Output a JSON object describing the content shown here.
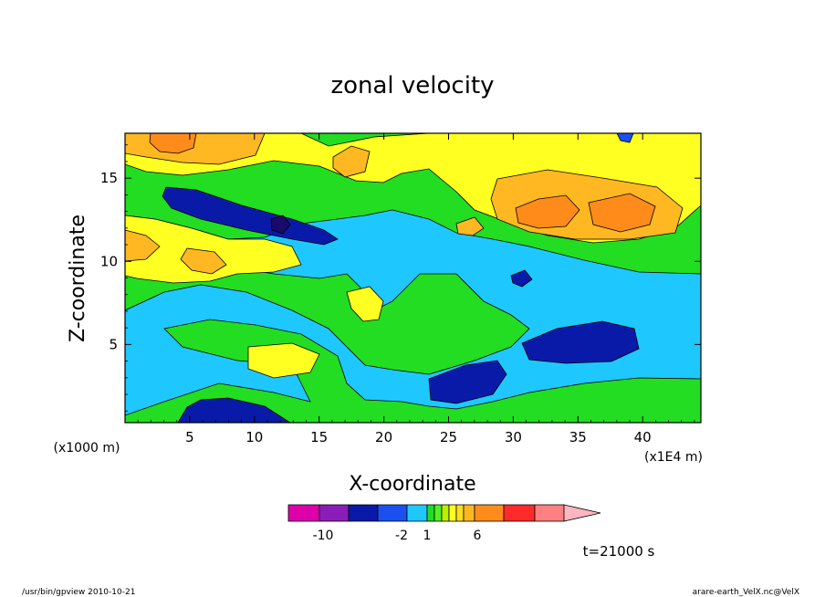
{
  "chart_data": {
    "type": "contour",
    "title": "zonal velocity",
    "xlabel": "X-coordinate",
    "ylabel": "Z-coordinate",
    "x_unit": "(x1E4 m)",
    "y_unit": "(x1000 m)",
    "xlim": [
      0,
      44.5
    ],
    "ylim": [
      0.3,
      17.7
    ],
    "x_ticks": [
      "5",
      "10",
      "15",
      "20",
      "25",
      "30",
      "35",
      "40"
    ],
    "y_ticks": [
      "5",
      "10",
      "15"
    ],
    "colorbar": {
      "colors": [
        "#dd00aa",
        "#8a1db8",
        "#0a1aa8",
        "#1a50f0",
        "#1ec8ff",
        "#22dd22",
        "#55ee22",
        "#b8f000",
        "#ffff22",
        "#ffdd22",
        "#ffb822",
        "#ff8c1a",
        "#ff2a2a",
        "#ff8080",
        "#ffb6c1"
      ],
      "tick_labels": [
        "-10",
        "-2",
        "1",
        "6"
      ]
    },
    "regions": [
      {
        "kind": "strong_negative",
        "color": "#0a1aa8",
        "location": "upper-left band, x 3-14, z 11-15"
      },
      {
        "kind": "strong_negative",
        "color": "#0a1aa8",
        "location": "lower middle-right, x 24-28, z 1.5-3"
      },
      {
        "kind": "strong_negative",
        "color": "#0a1aa8",
        "location": "right, x 31-39, z 4-6"
      },
      {
        "kind": "positive_max",
        "color": "#ff8c1a",
        "location": "upper right, x 30-43, z 11.5-14"
      },
      {
        "kind": "positive_max",
        "color": "#ff8c1a",
        "location": "top-left corner, x 2-5, z 16-17.7"
      }
    ]
  },
  "annotations": {
    "time": "t=21000 s",
    "footer_left": "/usr/bin/gpview   2010-10-21",
    "footer_right": "arare-earth_VelX.nc@VelX"
  }
}
